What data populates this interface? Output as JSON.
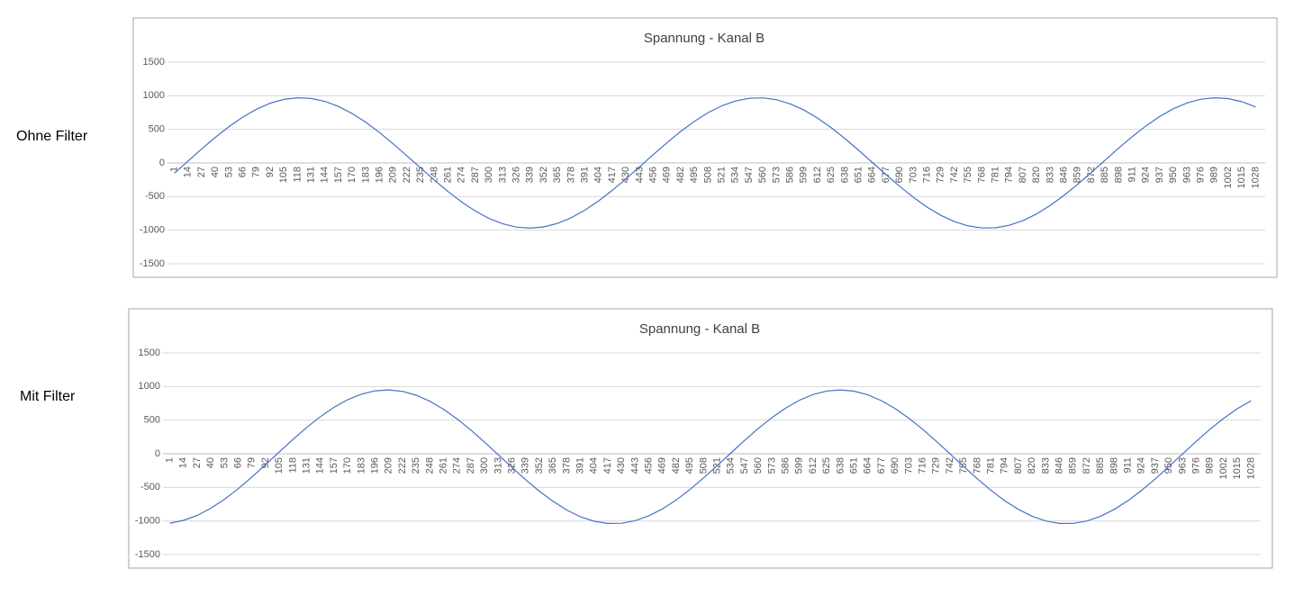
{
  "row_labels": [
    "Ohne Filter",
    "Mit Filter"
  ],
  "chart_data": [
    {
      "type": "line",
      "title": "Spannung - Kanal B",
      "categories": [
        "1",
        "14",
        "27",
        "40",
        "53",
        "66",
        "79",
        "92",
        "105",
        "118",
        "131",
        "144",
        "157",
        "170",
        "183",
        "196",
        "209",
        "222",
        "235",
        "248",
        "261",
        "274",
        "287",
        "300",
        "313",
        "326",
        "339",
        "352",
        "365",
        "378",
        "391",
        "404",
        "417",
        "430",
        "443",
        "456",
        "469",
        "482",
        "495",
        "508",
        "521",
        "534",
        "547",
        "560",
        "573",
        "586",
        "599",
        "612",
        "625",
        "638",
        "651",
        "664",
        "677",
        "690",
        "703",
        "716",
        "729",
        "742",
        "755",
        "768",
        "781",
        "794",
        "807",
        "820",
        "833",
        "846",
        "859",
        "872",
        "885",
        "898",
        "911",
        "924",
        "937",
        "950",
        "963",
        "976",
        "989",
        "1002",
        "1015",
        "1028"
      ],
      "values": [
        -153,
        28,
        209,
        382,
        541,
        682,
        799,
        888,
        945,
        969,
        959,
        916,
        840,
        734,
        604,
        451,
        283,
        105,
        -77,
        -256,
        -426,
        -582,
        -717,
        -826,
        -906,
        -955,
        -970,
        -951,
        -898,
        -814,
        -702,
        -564,
        -407,
        -236,
        -56,
        126,
        303,
        470,
        620,
        748,
        850,
        922,
        962,
        968,
        940,
        879,
        787,
        667,
        524,
        362,
        188,
        7,
        -174,
        -349,
        -512,
        -657,
        -779,
        -873,
        -936,
        -967,
        -964,
        -927,
        -858,
        -758,
        -631,
        -482,
        -317,
        -140,
        41,
        222,
        394,
        553,
        692,
        807,
        893,
        948,
        970,
        957,
        911,
        833
      ],
      "color": "#4472c4",
      "ylim": [
        -1500,
        1500
      ],
      "yticks": [
        -1500,
        -1000,
        -500,
        0,
        500,
        1000,
        1500
      ],
      "grid": true
    },
    {
      "type": "line",
      "title": "Spannung - Kanal B",
      "categories": [
        "1",
        "14",
        "27",
        "40",
        "53",
        "66",
        "79",
        "92",
        "105",
        "118",
        "131",
        "144",
        "157",
        "170",
        "183",
        "196",
        "209",
        "222",
        "235",
        "248",
        "261",
        "274",
        "287",
        "300",
        "313",
        "326",
        "339",
        "352",
        "365",
        "378",
        "391",
        "404",
        "417",
        "430",
        "443",
        "456",
        "469",
        "482",
        "495",
        "508",
        "521",
        "534",
        "547",
        "560",
        "573",
        "586",
        "599",
        "612",
        "625",
        "638",
        "651",
        "664",
        "677",
        "690",
        "703",
        "716",
        "729",
        "742",
        "755",
        "768",
        "781",
        "794",
        "807",
        "820",
        "833",
        "846",
        "859",
        "872",
        "885",
        "898",
        "911",
        "924",
        "937",
        "950",
        "963",
        "976",
        "989",
        "1002",
        "1015",
        "1028"
      ],
      "values": [
        -1032,
        -991,
        -917,
        -810,
        -676,
        -520,
        -346,
        -161,
        28,
        214,
        391,
        552,
        691,
        805,
        887,
        936,
        950,
        928,
        870,
        781,
        661,
        516,
        351,
        171,
        -16,
        -204,
        -387,
        -557,
        -709,
        -837,
        -937,
        -1004,
        -1037,
        -1034,
        -995,
        -923,
        -819,
        -687,
        -532,
        -359,
        -175,
        14,
        200,
        378,
        540,
        681,
        797,
        881,
        933,
        950,
        931,
        876,
        789,
        671,
        528,
        364,
        185,
        -1,
        -190,
        -373,
        -545,
        -699,
        -828,
        -930,
        -1000,
        -1036,
        -1035,
        -1000,
        -930,
        -828,
        -698,
        -544,
        -373,
        -189,
        -1,
        186,
        365,
        528,
        671,
        789
      ],
      "color": "#4472c4",
      "ylim": [
        -1500,
        1500
      ],
      "yticks": [
        -1500,
        -1000,
        -500,
        0,
        500,
        1000,
        1500
      ],
      "grid": true
    }
  ]
}
